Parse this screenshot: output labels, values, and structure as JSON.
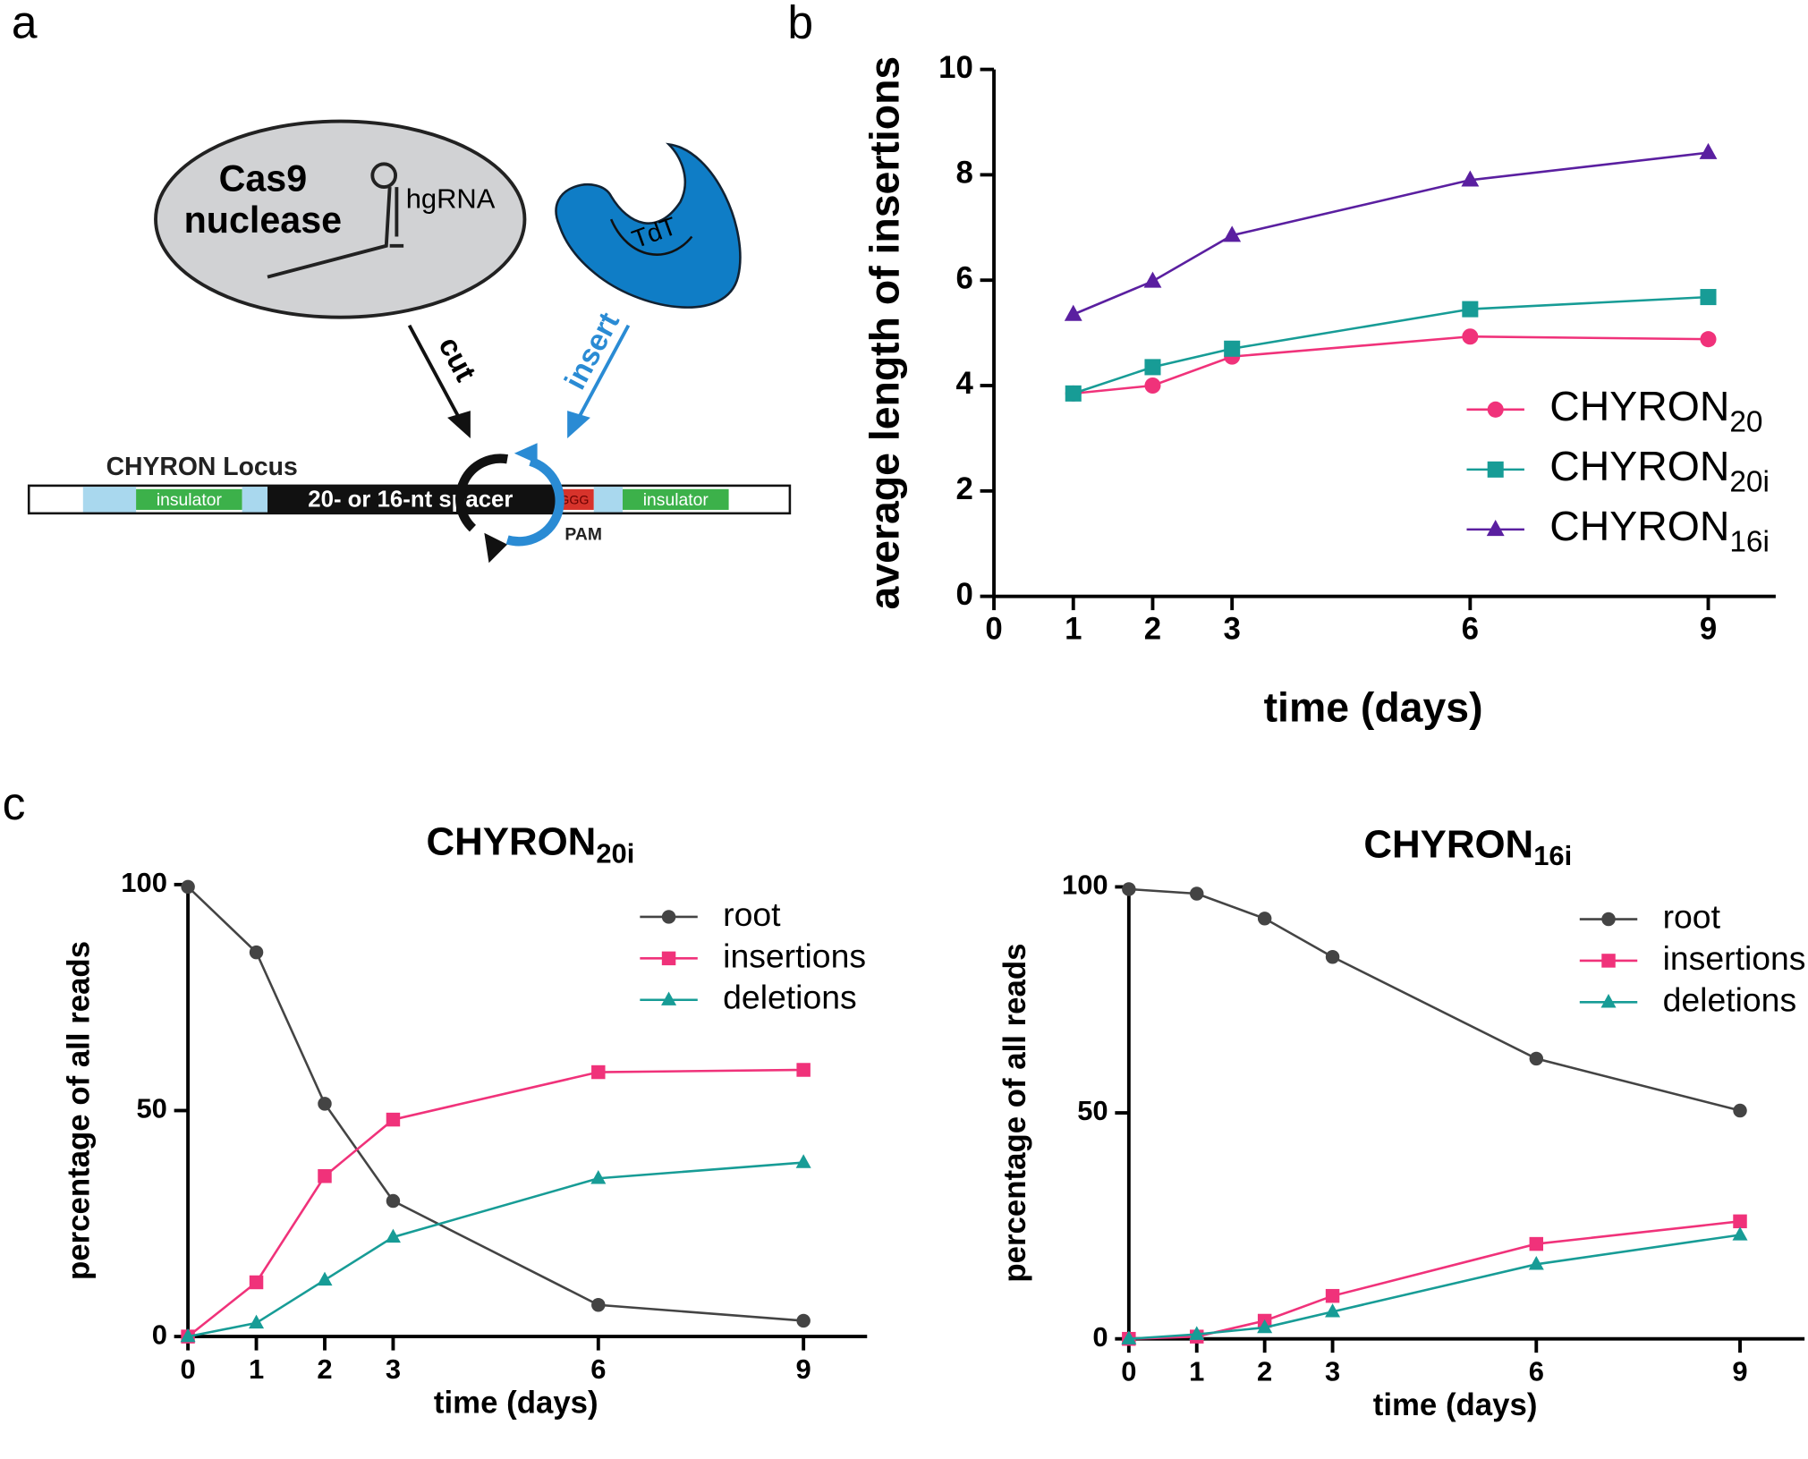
{
  "panel_labels": [
    "a",
    "b",
    "c"
  ],
  "diagram": {
    "enzyme_line1": "Cas9",
    "enzyme_line2": "nuclease",
    "guide": "hgRNA",
    "tdt": "TdT",
    "cut": "cut",
    "insert": "insert",
    "locus": "CHYRON Locus",
    "insulator_left": "insulator",
    "spacer": "20- or 16-nt spacer",
    "pam_seq": "GGG",
    "insulator_right": "insulator",
    "pam": "PAM"
  },
  "chart_data": [
    {
      "type": "line",
      "xlabel": "time (days)",
      "ylabel": "average length of insertions",
      "x": [
        1,
        2,
        3,
        6,
        9
      ],
      "xlim": [
        0,
        9.85
      ],
      "xticks": [
        0,
        1,
        2,
        3,
        6,
        9
      ],
      "ylim": [
        0,
        10
      ],
      "yticks": [
        0,
        2,
        4,
        6,
        8,
        10
      ],
      "legend": "lower right",
      "series": [
        {
          "name": "CHYRON",
          "subscript": "20",
          "color": "#f0327a",
          "marker": "circle",
          "values": [
            3.85,
            4.0,
            4.55,
            4.93,
            4.88
          ]
        },
        {
          "name": "CHYRON",
          "subscript": "20i",
          "color": "#179c96",
          "marker": "square",
          "values": [
            3.85,
            4.35,
            4.7,
            5.45,
            5.68
          ]
        },
        {
          "name": "CHYRON",
          "subscript": "16i",
          "color": "#5a1fa0",
          "marker": "triangle",
          "values": [
            5.35,
            5.98,
            6.85,
            7.9,
            8.42
          ]
        }
      ]
    },
    {
      "type": "line",
      "title": "CHYRON",
      "title_subscript": "20i",
      "xlabel": "time (days)",
      "ylabel": "percentage of all reads",
      "x": [
        0,
        1,
        2,
        3,
        6,
        9
      ],
      "xlim": [
        0,
        9.93
      ],
      "xticks": [
        0,
        1,
        2,
        3,
        6,
        9
      ],
      "ylim": [
        0,
        100
      ],
      "yticks": [
        0,
        50,
        100
      ],
      "legend": "upper right",
      "series": [
        {
          "name": "root",
          "color": "#444444",
          "marker": "circle",
          "values": [
            99.5,
            85,
            51.5,
            30,
            7,
            3.5
          ]
        },
        {
          "name": "insertions",
          "color": "#f0327a",
          "marker": "square",
          "values": [
            0,
            12,
            35.5,
            48,
            58.5,
            59
          ]
        },
        {
          "name": "deletions",
          "color": "#179c96",
          "marker": "triangle",
          "values": [
            0,
            3,
            12.5,
            22,
            35,
            38.5
          ]
        }
      ]
    },
    {
      "type": "line",
      "title": "CHYRON",
      "title_subscript": "16i",
      "xlabel": "time (days)",
      "ylabel": "percentage of all reads",
      "x": [
        0,
        1,
        2,
        3,
        6,
        9
      ],
      "xlim": [
        0,
        9.95
      ],
      "xticks": [
        0,
        1,
        2,
        3,
        6,
        9
      ],
      "ylim": [
        0,
        100
      ],
      "yticks": [
        0,
        50,
        100
      ],
      "legend": "upper right",
      "series": [
        {
          "name": "root",
          "color": "#444444",
          "marker": "circle",
          "values": [
            99.5,
            98.5,
            93,
            84.5,
            62,
            50.5
          ]
        },
        {
          "name": "insertions",
          "color": "#f0327a",
          "marker": "square",
          "values": [
            0,
            0.5,
            4,
            9.5,
            21,
            26
          ]
        },
        {
          "name": "deletions",
          "color": "#179c96",
          "marker": "triangle",
          "values": [
            0,
            1,
            2.5,
            6,
            16.5,
            23
          ]
        }
      ]
    }
  ]
}
